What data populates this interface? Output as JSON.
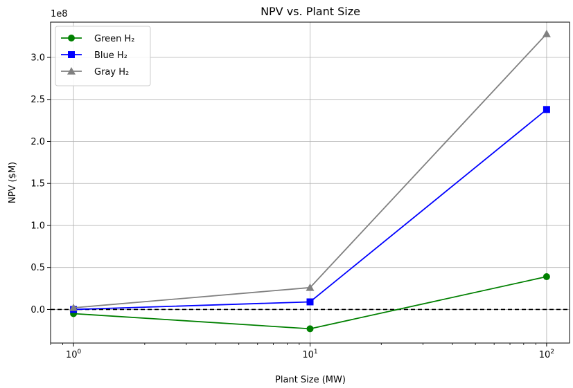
{
  "chart_data": {
    "type": "line",
    "title": "NPV vs. Plant Size",
    "xlabel": "Plant Size (MW)",
    "ylabel": "NPV ($M)",
    "y_offset_label": "1e8",
    "x_scale": "log",
    "x": [
      1,
      10,
      100
    ],
    "xlim": [
      0.8,
      125
    ],
    "ylim": [
      -0.4,
      3.42
    ],
    "x_ticks": [
      {
        "value": 1,
        "base": "10",
        "exp": "0"
      },
      {
        "value": 10,
        "base": "10",
        "exp": "1"
      },
      {
        "value": 100,
        "base": "10",
        "exp": "2"
      }
    ],
    "y_ticks": [
      {
        "value": 0.0,
        "label": "0.0"
      },
      {
        "value": 0.5,
        "label": "0.5"
      },
      {
        "value": 1.0,
        "label": "1.0"
      },
      {
        "value": 1.5,
        "label": "1.5"
      },
      {
        "value": 2.0,
        "label": "2.0"
      },
      {
        "value": 2.5,
        "label": "2.5"
      },
      {
        "value": 3.0,
        "label": "3.0"
      }
    ],
    "grid": true,
    "reference_line": {
      "y": 0,
      "style": "dashed",
      "color": "#000000"
    },
    "legend_position": "top-left",
    "series": [
      {
        "name": "Green H₂",
        "color": "#008000",
        "marker": "circle",
        "values": [
          -0.05,
          -0.23,
          0.39
        ]
      },
      {
        "name": "Blue H₂",
        "color": "#0000ff",
        "marker": "square",
        "values": [
          0.0,
          0.09,
          2.38
        ]
      },
      {
        "name": "Gray H₂",
        "color": "#808080",
        "marker": "triangle",
        "values": [
          0.02,
          0.26,
          3.28
        ]
      }
    ]
  }
}
